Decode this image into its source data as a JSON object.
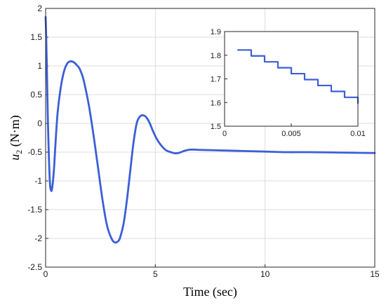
{
  "chart_data": [
    {
      "type": "line",
      "xlabel": "Time (sec)",
      "ylabel": {
        "var": "u",
        "sub": "2",
        "unit": " (N·m)"
      },
      "xlim": [
        0,
        15
      ],
      "ylim": [
        -2.5,
        2
      ],
      "xticks": [
        "0",
        "5",
        "10",
        "15"
      ],
      "yticks": [
        "-2.5",
        "-2",
        "-1.5",
        "-1",
        "-0.5",
        "0",
        "0.5",
        "1",
        "1.5",
        "2"
      ],
      "grid": true,
      "color": "#3b5fd6",
      "series": [
        {
          "x": [
            0,
            0.02,
            0.06,
            0.1,
            0.15,
            0.2,
            0.25,
            0.3,
            0.38,
            0.45,
            0.55,
            0.7,
            0.85,
            1.0,
            1.15,
            1.3,
            1.45,
            1.55,
            1.7,
            1.85,
            2.0,
            2.2,
            2.4,
            2.6,
            2.8,
            3.0,
            3.15,
            3.3,
            3.4,
            3.55,
            3.7,
            3.85,
            4.0,
            4.15,
            4.3,
            4.45,
            4.6,
            4.75,
            4.9,
            5.05,
            5.2,
            5.35,
            5.5,
            5.7,
            5.9,
            6.1,
            6.3,
            6.5,
            6.7,
            7.0,
            7.5,
            8.0,
            9.0,
            10.0,
            11.0,
            12.0,
            13.0,
            14.0,
            15.0
          ],
          "y": [
            1.85,
            1.6,
            0.9,
            0.1,
            -0.6,
            -1.05,
            -1.17,
            -1.12,
            -0.8,
            -0.35,
            0.2,
            0.65,
            0.92,
            1.05,
            1.08,
            1.06,
            1.0,
            0.95,
            0.8,
            0.55,
            0.25,
            -0.25,
            -0.8,
            -1.35,
            -1.78,
            -2.0,
            -2.07,
            -2.05,
            -1.98,
            -1.75,
            -1.35,
            -0.85,
            -0.35,
            0.0,
            0.12,
            0.14,
            0.1,
            0.0,
            -0.14,
            -0.26,
            -0.35,
            -0.42,
            -0.47,
            -0.5,
            -0.52,
            -0.51,
            -0.48,
            -0.46,
            -0.455,
            -0.46,
            -0.465,
            -0.47,
            -0.48,
            -0.49,
            -0.5,
            -0.5,
            -0.505,
            -0.51,
            -0.515
          ]
        }
      ]
    },
    {
      "type": "line",
      "xlim": [
        0,
        0.01
      ],
      "ylim": [
        1.5,
        1.9
      ],
      "xticks": [
        "0",
        "0.005",
        "0.01"
      ],
      "yticks": [
        "1.5",
        "1.6",
        "1.7",
        "1.8",
        "1.9"
      ],
      "grid": false,
      "color": "#3b5fd6",
      "series": [
        {
          "step": "post",
          "x": [
            0.001,
            0.002,
            0.003,
            0.004,
            0.005,
            0.006,
            0.007,
            0.008,
            0.009,
            0.01
          ],
          "y": [
            1.822,
            1.797,
            1.772,
            1.747,
            1.722,
            1.697,
            1.672,
            1.647,
            1.622,
            1.597
          ]
        }
      ]
    }
  ]
}
